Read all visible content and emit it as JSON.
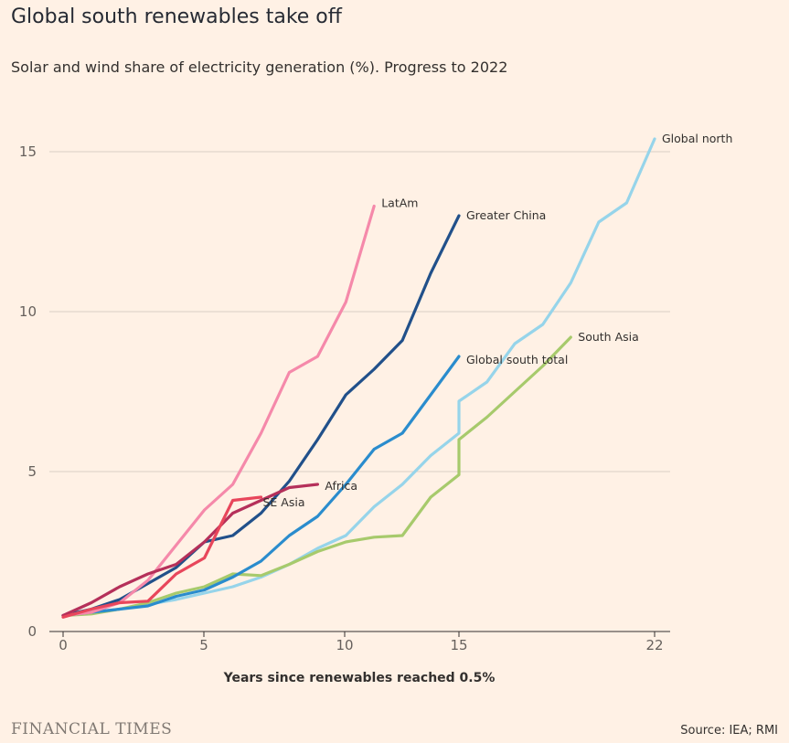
{
  "header": {
    "title": "Global south renewables take off",
    "subtitle": "Solar and wind share of electricity generation (%). Progress to 2022"
  },
  "footer": {
    "brand": "FINANCIAL TIMES",
    "source": "Source: IEA; RMI"
  },
  "chart_data": {
    "type": "line",
    "title": "Global south renewables take off",
    "subtitle": "Solar and wind share of electricity generation (%). Progress to 2022",
    "xlabel": "Years since renewables reached 0.5%",
    "ylabel": "",
    "xlim": [
      -0.5,
      21.5
    ],
    "ylim": [
      0,
      15.5
    ],
    "xticks": [
      0,
      5,
      10,
      15,
      22
    ],
    "xtick_labels": [
      "0",
      "5",
      "10",
      "15",
      "22"
    ],
    "yticks": [
      0,
      5,
      10,
      15
    ],
    "ytick_labels": [
      "0",
      "5",
      "10",
      "15"
    ],
    "grid": "horizontal",
    "series": [
      {
        "name": "Global north",
        "color": "#96d4ea",
        "points": [
          [
            0,
            0.5
          ],
          [
            1,
            0.6
          ],
          [
            2,
            0.7
          ],
          [
            3,
            0.85
          ],
          [
            4,
            1.0
          ],
          [
            5,
            1.2
          ],
          [
            6,
            1.4
          ],
          [
            7,
            1.7
          ],
          [
            8,
            2.1
          ],
          [
            9,
            2.6
          ],
          [
            10,
            3.0
          ],
          [
            11,
            3.9
          ],
          [
            12,
            4.6
          ],
          [
            13,
            5.5
          ],
          [
            14,
            6.2
          ],
          [
            14,
            7.2
          ],
          [
            15,
            7.8
          ],
          [
            16,
            9.0
          ],
          [
            17,
            9.6
          ],
          [
            18,
            10.9
          ],
          [
            19,
            12.8
          ],
          [
            20,
            13.4
          ],
          [
            21,
            15.4
          ]
        ]
      },
      {
        "name": "South Asia",
        "color": "#a7ca6c",
        "points": [
          [
            0,
            0.5
          ],
          [
            1,
            0.55
          ],
          [
            2,
            0.7
          ],
          [
            3,
            0.9
          ],
          [
            4,
            1.2
          ],
          [
            5,
            1.4
          ],
          [
            6,
            1.8
          ],
          [
            7,
            1.75
          ],
          [
            8,
            2.1
          ],
          [
            9,
            2.5
          ],
          [
            10,
            2.8
          ],
          [
            11,
            2.95
          ],
          [
            12,
            3.0
          ],
          [
            13,
            4.2
          ],
          [
            14,
            4.9
          ],
          [
            14,
            6.0
          ],
          [
            15,
            6.7
          ],
          [
            16,
            7.5
          ],
          [
            17,
            8.3
          ],
          [
            18,
            9.2
          ]
        ]
      },
      {
        "name": "Global south total",
        "color": "#2a8ccd",
        "points": [
          [
            0,
            0.5
          ],
          [
            1,
            0.6
          ],
          [
            2,
            0.7
          ],
          [
            3,
            0.8
          ],
          [
            4,
            1.1
          ],
          [
            5,
            1.3
          ],
          [
            6,
            1.7
          ],
          [
            7,
            2.2
          ],
          [
            8,
            3.0
          ],
          [
            9,
            3.6
          ],
          [
            10,
            4.6
          ],
          [
            11,
            5.7
          ],
          [
            12,
            6.2
          ],
          [
            13,
            7.4
          ],
          [
            14,
            8.6
          ]
        ]
      },
      {
        "name": "Greater China",
        "color": "#21508a",
        "points": [
          [
            0,
            0.5
          ],
          [
            1,
            0.7
          ],
          [
            2,
            1.0
          ],
          [
            3,
            1.5
          ],
          [
            4,
            2.0
          ],
          [
            5,
            2.8
          ],
          [
            6,
            3.0
          ],
          [
            7,
            3.7
          ],
          [
            8,
            4.7
          ],
          [
            9,
            6.0
          ],
          [
            10,
            7.4
          ],
          [
            11,
            8.2
          ],
          [
            12,
            9.1
          ],
          [
            13,
            11.2
          ],
          [
            14,
            13.0
          ]
        ]
      },
      {
        "name": "LatAm",
        "color": "#f589aa",
        "points": [
          [
            0,
            0.5
          ],
          [
            1,
            0.6
          ],
          [
            2,
            0.9
          ],
          [
            3,
            1.6
          ],
          [
            4,
            2.7
          ],
          [
            5,
            3.8
          ],
          [
            6,
            4.6
          ],
          [
            7,
            6.2
          ],
          [
            8,
            8.1
          ],
          [
            9,
            8.6
          ],
          [
            10,
            10.3
          ],
          [
            11,
            13.3
          ]
        ]
      },
      {
        "name": "Africa",
        "color": "#b5305a",
        "points": [
          [
            0,
            0.5
          ],
          [
            1,
            0.9
          ],
          [
            2,
            1.4
          ],
          [
            3,
            1.8
          ],
          [
            4,
            2.1
          ],
          [
            5,
            2.8
          ],
          [
            6,
            3.7
          ],
          [
            7,
            4.1
          ],
          [
            8,
            4.5
          ],
          [
            9,
            4.6
          ]
        ]
      },
      {
        "name": "SE Asia",
        "color": "#e8465b",
        "points": [
          [
            0,
            0.45
          ],
          [
            1,
            0.7
          ],
          [
            2,
            0.9
          ],
          [
            3,
            0.95
          ],
          [
            4,
            1.8
          ],
          [
            5,
            2.3
          ],
          [
            6,
            4.1
          ],
          [
            7,
            4.2
          ]
        ]
      }
    ]
  }
}
